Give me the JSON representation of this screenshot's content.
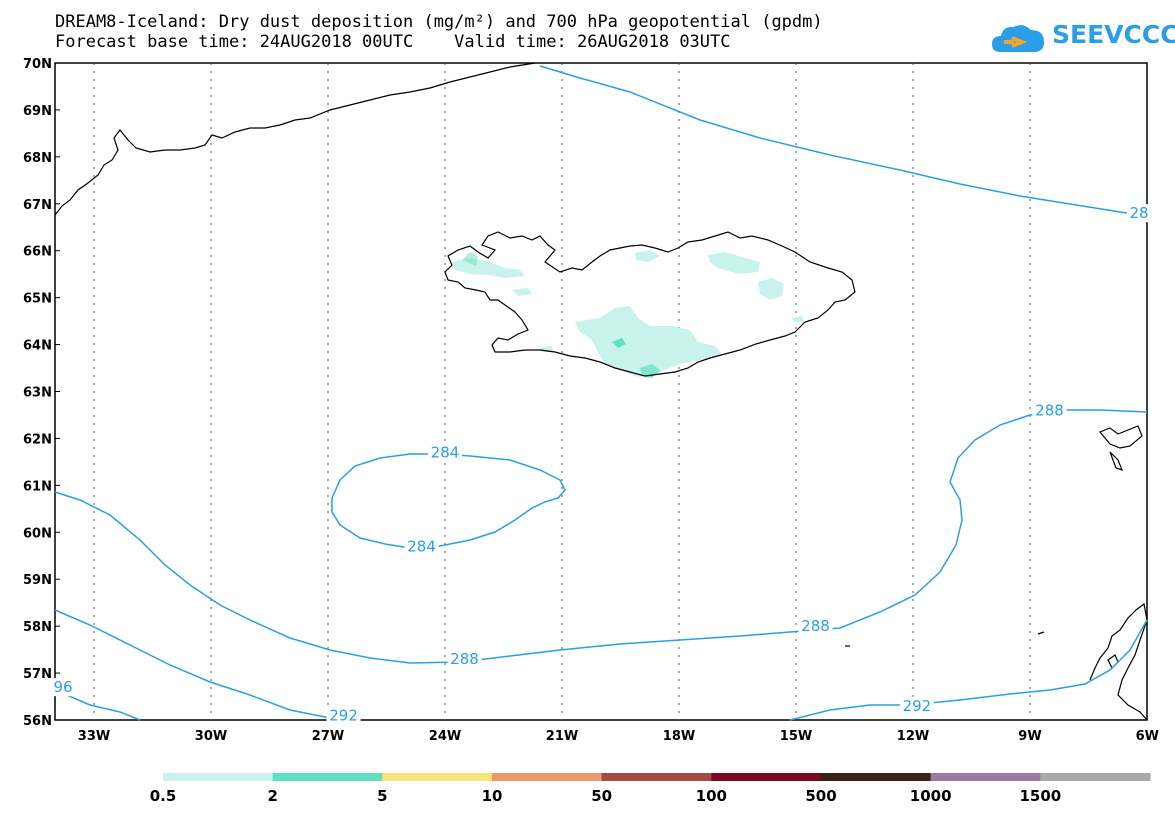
{
  "header": {
    "title_line1": "DREAM8-Iceland: Dry dust deposition (mg/m²) and 700 hPa geopotential (gpdm)",
    "title_line2": "Forecast base time: 24AUG2018 00UTC    Valid time: 26AUG2018 03UTC",
    "logo_text": "SEEVCCC",
    "logo_color": "#2a9ee8"
  },
  "map": {
    "lon_range": [
      -34,
      -6
    ],
    "lat_range": [
      56,
      70
    ],
    "lat_labels": [
      "70N",
      "69N",
      "68N",
      "67N",
      "66N",
      "65N",
      "64N",
      "63N",
      "62N",
      "61N",
      "60N",
      "59N",
      "58N",
      "57N",
      "56N"
    ],
    "lon_labels": [
      "33W",
      "30W",
      "27W",
      "24W",
      "21W",
      "18W",
      "15W",
      "12W",
      "9W",
      "6W"
    ],
    "contour_color": "#2a9ee8",
    "contour_labels": [
      {
        "text": "284",
        "lon": -24.0,
        "lat": 61.7
      },
      {
        "text": "284",
        "lon": -24.6,
        "lat": 59.7
      },
      {
        "text": "288",
        "lon": -23.5,
        "lat": 57.3
      },
      {
        "text": "288",
        "lon": -14.5,
        "lat": 58.0
      },
      {
        "text": "288",
        "lon": -8.5,
        "lat": 62.6
      },
      {
        "text": "28",
        "lon": -6.0,
        "lat": 66.8
      },
      {
        "text": "292",
        "lon": -26.6,
        "lat": 56.1
      },
      {
        "text": "292",
        "lon": -11.9,
        "lat": 56.3
      },
      {
        "text": "96",
        "lon": -34.0,
        "lat": 56.7
      }
    ]
  },
  "legend": {
    "labels": [
      "0.5",
      "2",
      "5",
      "10",
      "50",
      "100",
      "500",
      "1000",
      "1500"
    ],
    "colors": [
      "#c8f2ec",
      "#5fe0c0",
      "#f7e47a",
      "#ea9a6a",
      "#a24a3e",
      "#7a0820",
      "#3a2418",
      "#9a7aa6",
      "#aaaaaa"
    ]
  }
}
